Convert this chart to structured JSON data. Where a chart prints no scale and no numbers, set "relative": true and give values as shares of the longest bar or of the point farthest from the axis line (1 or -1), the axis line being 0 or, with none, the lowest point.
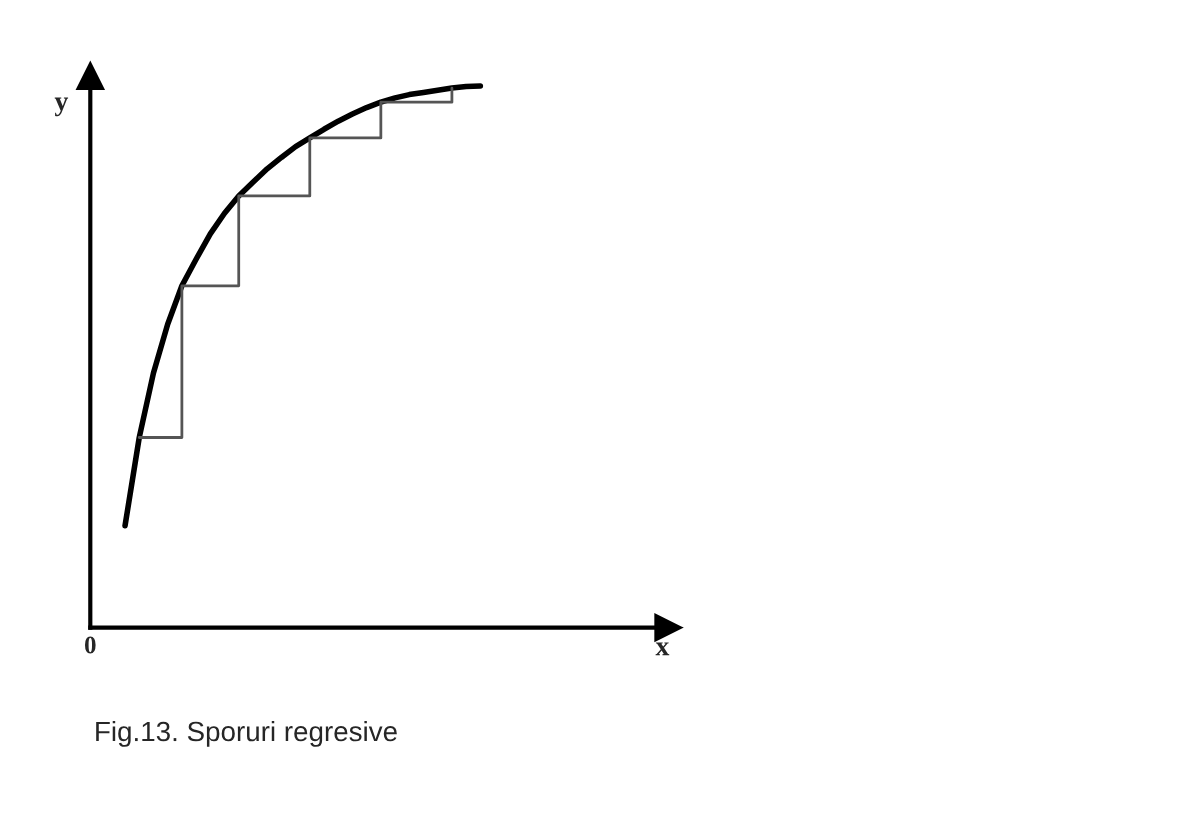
{
  "chart_data": {
    "type": "line",
    "relative": true,
    "tick_labels": false,
    "legend": false,
    "marker": "none",
    "line_style": "solid",
    "annotations": [
      "0",
      "x",
      "y",
      "Fig.13. Sporuri regresive"
    ],
    "categories": [
      null,
      null,
      null,
      null,
      null,
      null,
      null,
      null,
      null,
      null,
      null,
      null,
      null,
      null,
      null,
      null,
      null,
      null,
      null,
      null,
      null,
      null,
      null,
      null,
      null,
      null
    ],
    "series": [
      {
        "color": "#000000",
        "values": [
          0.188,
          0.351,
          0.47,
          0.56,
          0.631,
          0.68,
          0.727,
          0.765,
          0.797,
          0.822,
          0.847,
          0.868,
          0.888,
          0.904,
          0.92,
          0.935,
          0.948,
          0.96,
          0.97,
          0.978,
          0.984,
          0.988,
          0.992,
          0.996,
          0.999,
          1.0
        ]
      },
      {
        "type": "step",
        "color": "#555555",
        "values": [
          null,
          0.351,
          null,
          null,
          0.631,
          null,
          null,
          null,
          0.797,
          null,
          null,
          null,
          null,
          0.904,
          null,
          null,
          null,
          null,
          0.97,
          null,
          null,
          null,
          null,
          0.996,
          null,
          null
        ]
      }
    ]
  }
}
